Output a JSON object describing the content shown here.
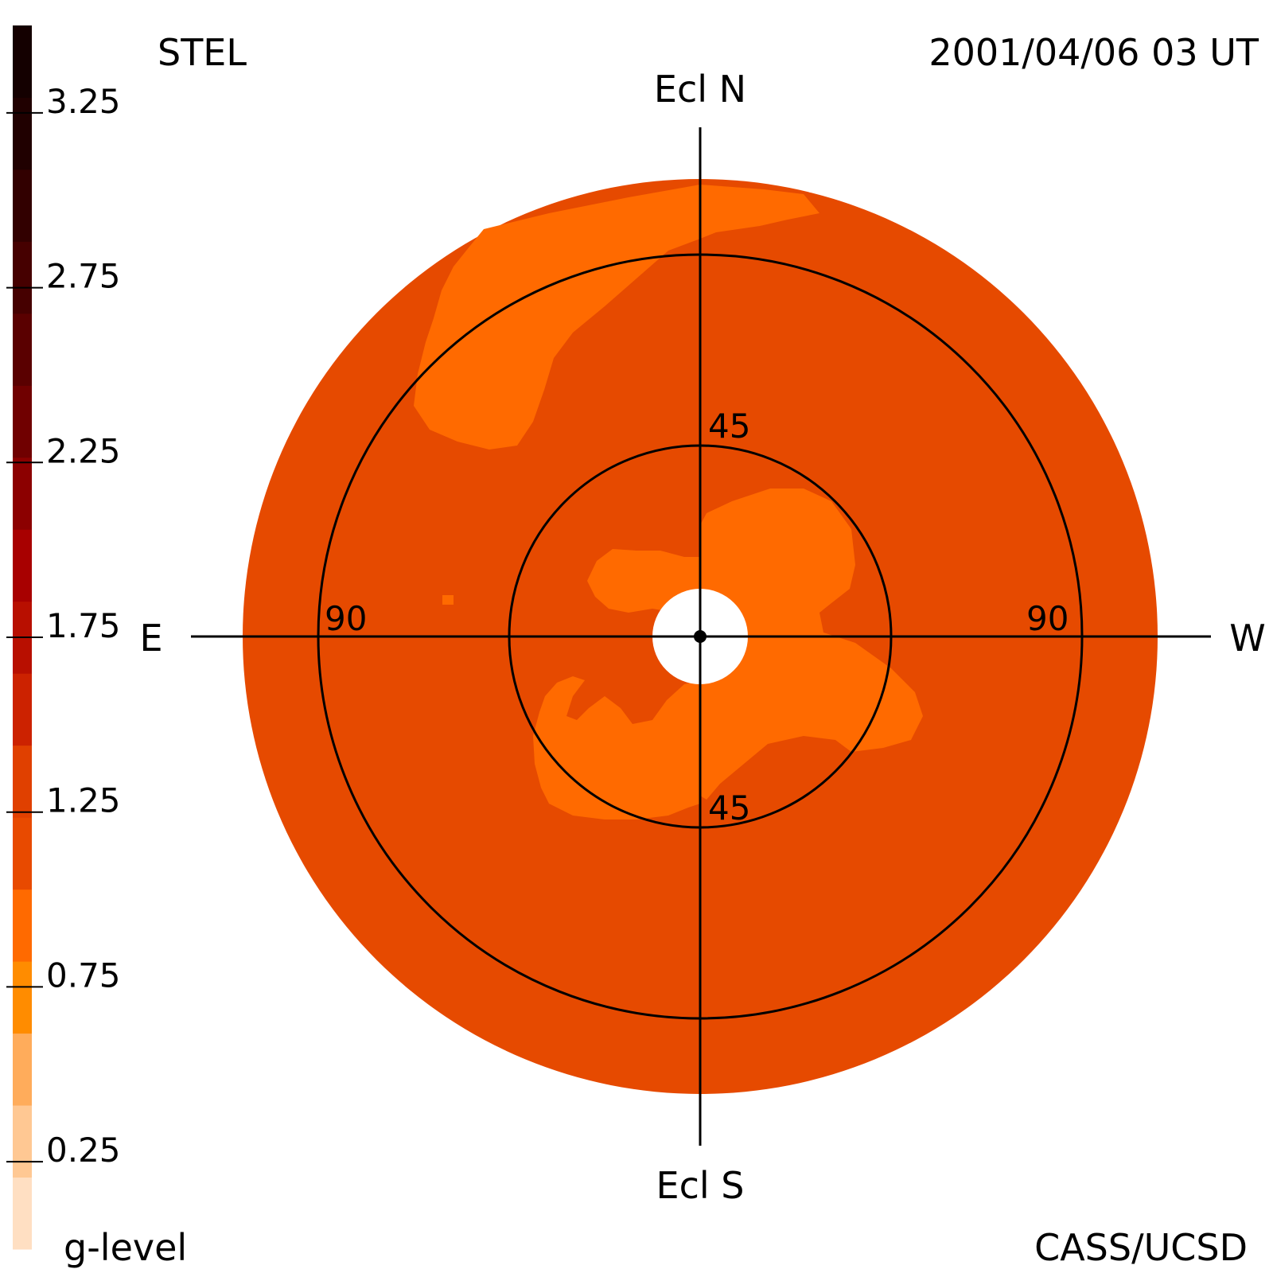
{
  "header": {
    "instrument": "STEL",
    "timestamp": "2001/04/06 03 UT",
    "credit": "CASS/UCSD"
  },
  "directions": {
    "north": "Ecl N",
    "south": "Ecl S",
    "east": "E",
    "west": "W"
  },
  "chart_data": {
    "type": "heatmap",
    "projection": "sky map, elongation rings around the Sun",
    "rings": [
      {
        "value": 45,
        "labels": [
          "45",
          "45"
        ]
      },
      {
        "value": 90,
        "labels": [
          "90",
          "90"
        ]
      }
    ],
    "colorbar": {
      "label": "g-level",
      "min": 0,
      "max": 3.5,
      "step": 0.25,
      "tick_labels": [
        "3.25",
        "2.75",
        "2.25",
        "1.75",
        "1.25",
        "0.75",
        "0.25"
      ],
      "tick_values": [
        3.25,
        2.75,
        2.25,
        1.75,
        1.25,
        0.75,
        0.25
      ],
      "colors": [
        "#ffdfc2",
        "#ffc893",
        "#ffac5b",
        "#ff8c00",
        "#ff6a00",
        "#e84a00",
        "#e04000",
        "#cc2200",
        "#b80f00",
        "#a80000",
        "#8c0000",
        "#700000",
        "#5a0000",
        "#460000",
        "#320000",
        "#200000",
        "#140000"
      ]
    },
    "map_levels": {
      "background_level": 1.1,
      "background_color": "#e64a00",
      "enhancement_level": 0.85,
      "enhancement_color": "#ff6a00",
      "occulter_color": "#ffffff"
    }
  }
}
